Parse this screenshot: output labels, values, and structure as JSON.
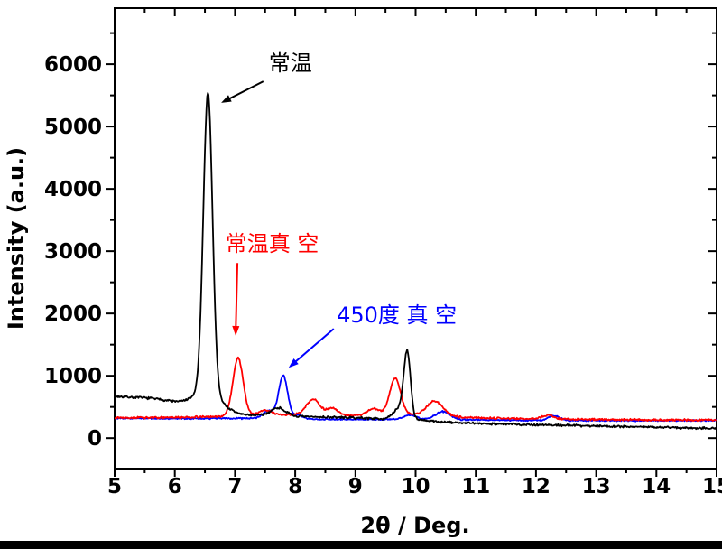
{
  "chart_data": {
    "type": "line",
    "title": "",
    "xlabel": "2θ / Deg.",
    "ylabel": "Intensity (a.u.)",
    "xlim": [
      5,
      15
    ],
    "ylim": [
      -490,
      6900
    ],
    "x_ticks": [
      5,
      6,
      7,
      8,
      9,
      10,
      11,
      12,
      13,
      14,
      15
    ],
    "y_ticks": [
      0,
      1000,
      2000,
      3000,
      4000,
      5000,
      6000
    ],
    "x_minor_step": 0.5,
    "y_minor_step": 500,
    "grid": false,
    "legend_position": "none",
    "frame_color": "#000000",
    "series": [
      {
        "name": "常温",
        "color": "#000000",
        "noise": 22,
        "seed": 7,
        "baseline": [
          [
            5,
            670
          ],
          [
            5.3,
            655
          ],
          [
            5.6,
            640
          ],
          [
            5.9,
            600
          ],
          [
            6.15,
            540
          ],
          [
            6.35,
            470
          ],
          [
            6.55,
            420
          ],
          [
            6.8,
            390
          ],
          [
            7.2,
            370
          ],
          [
            7.6,
            360
          ],
          [
            8.0,
            345
          ],
          [
            8.6,
            335
          ],
          [
            9.2,
            320
          ],
          [
            9.6,
            305
          ],
          [
            9.95,
            300
          ],
          [
            10.15,
            280
          ],
          [
            10.5,
            255
          ],
          [
            11,
            235
          ],
          [
            11.5,
            225
          ],
          [
            12,
            215
          ],
          [
            12.5,
            205
          ],
          [
            13,
            195
          ],
          [
            13.5,
            185
          ],
          [
            14,
            175
          ],
          [
            14.5,
            165
          ],
          [
            15,
            160
          ]
        ],
        "peaks": [
          [
            6.55,
            4800,
            0.075
          ],
          [
            6.55,
            330,
            0.22
          ],
          [
            7.72,
            130,
            0.12
          ],
          [
            9.86,
            1020,
            0.055
          ],
          [
            9.74,
            180,
            0.1
          ]
        ]
      },
      {
        "name": "常温真 空",
        "color": "#ff0000",
        "noise": 18,
        "seed": 13,
        "baseline": [
          [
            5,
            330
          ],
          [
            5.5,
            328
          ],
          [
            6,
            330
          ],
          [
            6.5,
            340
          ],
          [
            7,
            355
          ],
          [
            7.5,
            370
          ],
          [
            8,
            380
          ],
          [
            8.5,
            370
          ],
          [
            9,
            360
          ],
          [
            9.5,
            370
          ],
          [
            10,
            380
          ],
          [
            10.4,
            360
          ],
          [
            10.8,
            335
          ],
          [
            11.2,
            320
          ],
          [
            12,
            308
          ],
          [
            13,
            298
          ],
          [
            14,
            292
          ],
          [
            15,
            290
          ]
        ],
        "peaks": [
          [
            7.05,
            930,
            0.085
          ],
          [
            7.5,
            80,
            0.1
          ],
          [
            8.3,
            250,
            0.11
          ],
          [
            8.62,
            110,
            0.09
          ],
          [
            9.3,
            110,
            0.1
          ],
          [
            9.66,
            590,
            0.09
          ],
          [
            10.32,
            230,
            0.13
          ],
          [
            12.2,
            60,
            0.1
          ]
        ]
      },
      {
        "name": "450度 真 空",
        "color": "#0000ff",
        "noise": 14,
        "seed": 29,
        "baseline": [
          [
            5,
            320
          ],
          [
            6,
            312
          ],
          [
            6.8,
            318
          ],
          [
            7.3,
            315
          ],
          [
            8,
            308
          ],
          [
            8.6,
            300
          ],
          [
            9.3,
            298
          ],
          [
            10,
            300
          ],
          [
            10.8,
            292
          ],
          [
            11.5,
            288
          ],
          [
            12.5,
            283
          ],
          [
            13.5,
            280
          ],
          [
            14.2,
            280
          ],
          [
            15,
            285
          ]
        ],
        "peaks": [
          [
            7.8,
            690,
            0.075
          ],
          [
            7.55,
            130,
            0.09
          ],
          [
            8.05,
            60,
            0.08
          ],
          [
            9.9,
            70,
            0.1
          ],
          [
            10.45,
            130,
            0.12
          ],
          [
            12.3,
            75,
            0.09
          ]
        ]
      }
    ],
    "annotations": [
      {
        "text": "常温",
        "color": "#000000",
        "text_x": 7.56,
        "text_y": 5900,
        "arrow": [
          [
            7.47,
            5725
          ],
          [
            6.77,
            5380
          ]
        ]
      },
      {
        "text": "常温真 空",
        "color": "#ff0000",
        "text_x": 6.84,
        "text_y": 3000,
        "arrow": [
          [
            7.04,
            2810
          ],
          [
            7.01,
            1640
          ]
        ]
      },
      {
        "text": "450度 真 空",
        "color": "#0000ff",
        "text_x": 8.69,
        "text_y": 1860,
        "arrow": [
          [
            8.64,
            1754
          ],
          [
            7.89,
            1130
          ]
        ]
      }
    ]
  }
}
